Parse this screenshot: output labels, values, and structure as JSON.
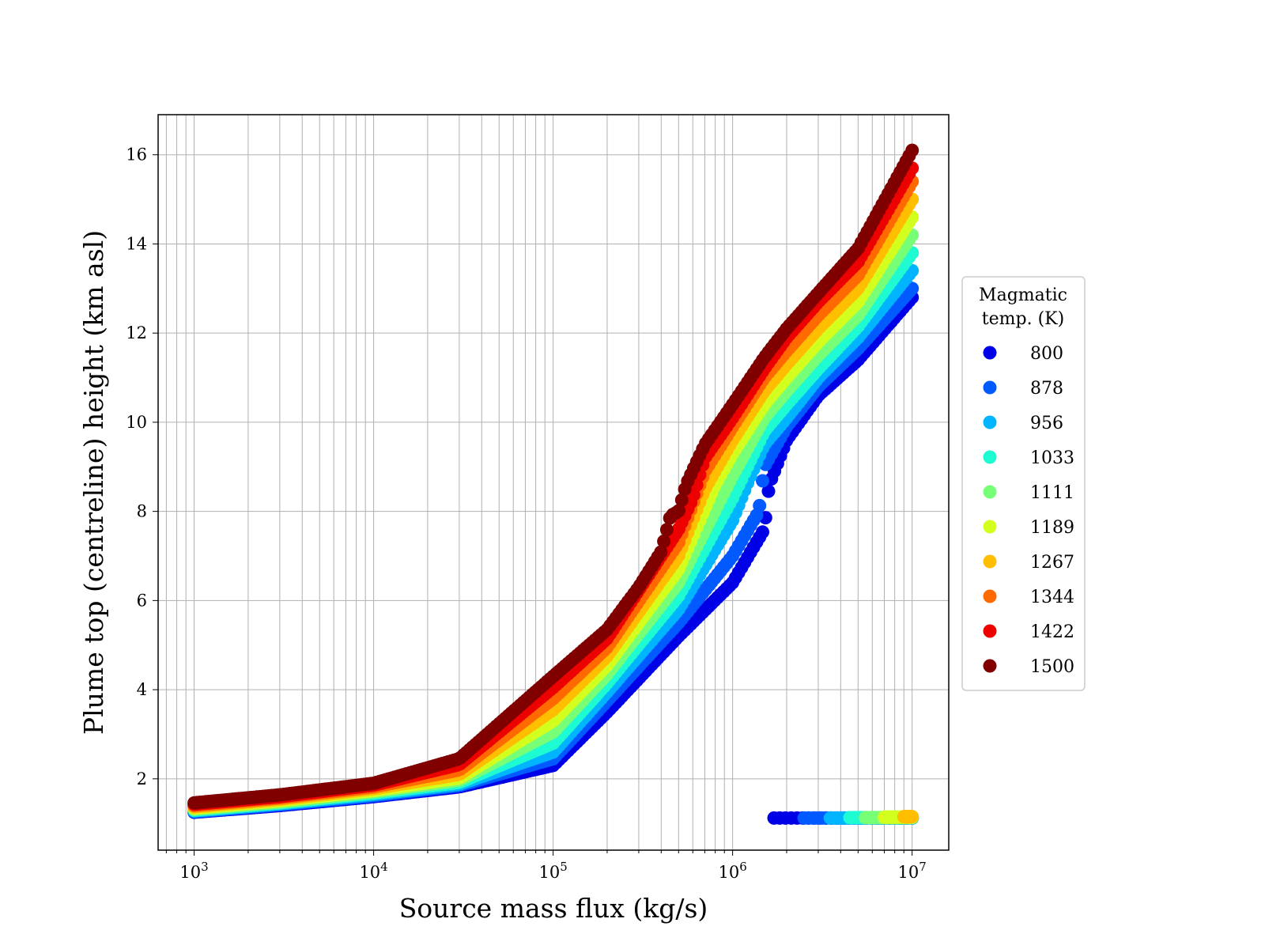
{
  "chart_data": {
    "type": "scatter",
    "title": "",
    "xlabel": "Source mass flux (kg/s)",
    "ylabel": "Plume top (centreline) height (km asl)",
    "xscale": "log",
    "xlim": [
      630,
      16000000
    ],
    "ylim": [
      0.4,
      16.9
    ],
    "x_ticks": [
      {
        "value": 1000,
        "base": "10",
        "exp": "3"
      },
      {
        "value": 10000,
        "base": "10",
        "exp": "4"
      },
      {
        "value": 100000,
        "base": "10",
        "exp": "5"
      },
      {
        "value": 1000000,
        "base": "10",
        "exp": "6"
      },
      {
        "value": 10000000,
        "base": "10",
        "exp": "7"
      }
    ],
    "y_ticks": [
      2,
      4,
      6,
      8,
      10,
      12,
      14,
      16
    ],
    "y_tick_labels": [
      "2",
      "4",
      "6",
      "8",
      "10",
      "12",
      "14",
      "16"
    ],
    "grid": true,
    "legend": {
      "title_lines": [
        "Magmatic",
        "temp. (K)"
      ],
      "placement": "right, outside plot"
    },
    "series": [
      {
        "name": "800",
        "color": "#0000e6",
        "points": [
          [
            1000,
            1.25
          ],
          [
            3000,
            1.4
          ],
          [
            10000,
            1.6
          ],
          [
            30000,
            1.82
          ],
          [
            100000,
            2.3
          ],
          [
            200000,
            3.5
          ],
          [
            500000,
            5.2
          ],
          [
            1000000,
            6.4
          ],
          [
            1500000,
            7.6
          ],
          [
            1600000,
            8.6
          ],
          [
            2000000,
            9.6
          ],
          [
            3000000,
            10.6
          ],
          [
            5000000,
            11.4
          ],
          [
            10000000,
            12.8
          ]
        ],
        "tail": [
          [
            1700000,
            1.12
          ],
          [
            10000000,
            1.12
          ]
        ]
      },
      {
        "name": "878",
        "color": "#005aff",
        "points": [
          [
            1000,
            1.26
          ],
          [
            3000,
            1.42
          ],
          [
            10000,
            1.62
          ],
          [
            30000,
            1.85
          ],
          [
            100000,
            2.45
          ],
          [
            200000,
            3.75
          ],
          [
            500000,
            5.5
          ],
          [
            1000000,
            7.0
          ],
          [
            1400000,
            8.0
          ],
          [
            1500000,
            9.0
          ],
          [
            2000000,
            9.9
          ],
          [
            3000000,
            10.8
          ],
          [
            5000000,
            11.65
          ],
          [
            10000000,
            13.0
          ]
        ],
        "tail": [
          [
            2500000,
            1.12
          ],
          [
            10000000,
            1.12
          ]
        ]
      },
      {
        "name": "956",
        "color": "#00b4ff",
        "points": [
          [
            1000,
            1.28
          ],
          [
            3000,
            1.44
          ],
          [
            10000,
            1.65
          ],
          [
            30000,
            1.88
          ],
          [
            100000,
            2.6
          ],
          [
            200000,
            3.95
          ],
          [
            500000,
            5.8
          ],
          [
            1000000,
            7.8
          ],
          [
            1200000,
            8.6
          ],
          [
            1500000,
            9.5
          ],
          [
            2000000,
            10.1
          ],
          [
            3000000,
            11.0
          ],
          [
            5000000,
            11.9
          ],
          [
            10000000,
            13.4
          ]
        ],
        "tail": [
          [
            3500000,
            1.12
          ],
          [
            10000000,
            1.12
          ]
        ]
      },
      {
        "name": "1033",
        "color": "#1efad2",
        "points": [
          [
            1000,
            1.3
          ],
          [
            3000,
            1.46
          ],
          [
            10000,
            1.68
          ],
          [
            30000,
            1.92
          ],
          [
            100000,
            2.8
          ],
          [
            200000,
            4.15
          ],
          [
            500000,
            6.1
          ],
          [
            1000000,
            8.3
          ],
          [
            1500000,
            9.8
          ],
          [
            2000000,
            10.4
          ],
          [
            3000000,
            11.2
          ],
          [
            5000000,
            12.15
          ],
          [
            10000000,
            13.8
          ]
        ],
        "tail": [
          [
            4500000,
            1.13
          ],
          [
            10000000,
            1.13
          ]
        ]
      },
      {
        "name": "1111",
        "color": "#78ff78",
        "points": [
          [
            1000,
            1.32
          ],
          [
            3000,
            1.48
          ],
          [
            10000,
            1.71
          ],
          [
            30000,
            1.97
          ],
          [
            100000,
            3.05
          ],
          [
            200000,
            4.35
          ],
          [
            500000,
            6.4
          ],
          [
            1000000,
            8.8
          ],
          [
            1500000,
            10.1
          ],
          [
            2000000,
            10.7
          ],
          [
            3000000,
            11.5
          ],
          [
            5000000,
            12.4
          ],
          [
            10000000,
            14.2
          ]
        ],
        "tail": [
          [
            5500000,
            1.13
          ],
          [
            10000000,
            1.13
          ]
        ]
      },
      {
        "name": "1189",
        "color": "#d2ff1e",
        "points": [
          [
            1000,
            1.34
          ],
          [
            3000,
            1.51
          ],
          [
            10000,
            1.74
          ],
          [
            30000,
            2.02
          ],
          [
            100000,
            3.3
          ],
          [
            200000,
            4.55
          ],
          [
            500000,
            6.7
          ],
          [
            800000,
            8.6
          ],
          [
            1000000,
            9.3
          ],
          [
            1500000,
            10.4
          ],
          [
            2000000,
            11.0
          ],
          [
            3000000,
            11.8
          ],
          [
            5000000,
            12.7
          ],
          [
            10000000,
            14.6
          ]
        ],
        "tail": [
          [
            7000000,
            1.14
          ],
          [
            10000000,
            1.14
          ]
        ]
      },
      {
        "name": "1267",
        "color": "#ffbe00",
        "points": [
          [
            1000,
            1.37
          ],
          [
            3000,
            1.54
          ],
          [
            10000,
            1.78
          ],
          [
            30000,
            2.1
          ],
          [
            100000,
            3.55
          ],
          [
            200000,
            4.75
          ],
          [
            500000,
            7.0
          ],
          [
            700000,
            8.5
          ],
          [
            1000000,
            9.6
          ],
          [
            1500000,
            10.7
          ],
          [
            2000000,
            11.3
          ],
          [
            3000000,
            12.1
          ],
          [
            5000000,
            13.0
          ],
          [
            10000000,
            15.0
          ]
        ],
        "tail": [
          [
            9000000,
            1.15
          ],
          [
            10000000,
            1.15
          ]
        ]
      },
      {
        "name": "1344",
        "color": "#ff6a00",
        "points": [
          [
            1000,
            1.4
          ],
          [
            3000,
            1.57
          ],
          [
            10000,
            1.82
          ],
          [
            30000,
            2.2
          ],
          [
            100000,
            3.8
          ],
          [
            200000,
            4.95
          ],
          [
            500000,
            7.3
          ],
          [
            700000,
            8.9
          ],
          [
            1000000,
            9.9
          ],
          [
            1500000,
            11.0
          ],
          [
            2000000,
            11.6
          ],
          [
            3000000,
            12.4
          ],
          [
            5000000,
            13.3
          ],
          [
            10000000,
            15.4
          ]
        ],
        "tail": []
      },
      {
        "name": "1422",
        "color": "#ec0000",
        "points": [
          [
            1000,
            1.43
          ],
          [
            3000,
            1.6
          ],
          [
            10000,
            1.86
          ],
          [
            30000,
            2.32
          ],
          [
            100000,
            4.05
          ],
          [
            200000,
            5.15
          ],
          [
            500000,
            7.6
          ],
          [
            600000,
            8.3
          ],
          [
            700000,
            9.2
          ],
          [
            1000000,
            10.1
          ],
          [
            1500000,
            11.2
          ],
          [
            2000000,
            11.9
          ],
          [
            3000000,
            12.7
          ],
          [
            5000000,
            13.6
          ],
          [
            10000000,
            15.7
          ]
        ],
        "tail": []
      },
      {
        "name": "1500",
        "color": "#800000",
        "points": [
          [
            1000,
            1.46
          ],
          [
            3000,
            1.64
          ],
          [
            10000,
            1.9
          ],
          [
            30000,
            2.45
          ],
          [
            100000,
            4.3
          ],
          [
            200000,
            5.35
          ],
          [
            300000,
            6.3
          ],
          [
            400000,
            7.1
          ],
          [
            450000,
            7.9
          ],
          [
            500000,
            8.0
          ],
          [
            550000,
            8.6
          ],
          [
            700000,
            9.5
          ],
          [
            1000000,
            10.4
          ],
          [
            1500000,
            11.45
          ],
          [
            2000000,
            12.1
          ],
          [
            3000000,
            12.9
          ],
          [
            5000000,
            13.9
          ],
          [
            10000000,
            16.1
          ]
        ],
        "tail": []
      }
    ]
  }
}
